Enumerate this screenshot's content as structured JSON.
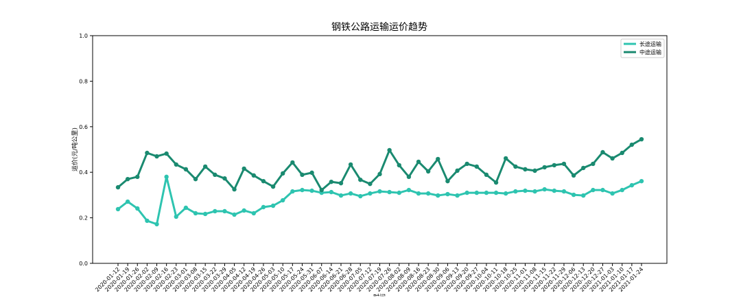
{
  "chart_data": {
    "type": "line",
    "title": "钢铁公路运输运价趋势",
    "xlabel": "时间",
    "ylabel": "运价(元/吨公里)",
    "categories": [
      "2020-01-12",
      "2020-01-19",
      "2020-01-26",
      "2020-02-02",
      "2020-02-09",
      "2020-02-16",
      "2020-02-23",
      "2020-03-01",
      "2020-03-08",
      "2020-03-15",
      "2020-03-22",
      "2020-03-29",
      "2020-04-05",
      "2020-04-12",
      "2020-04-19",
      "2020-04-26",
      "2020-05-03",
      "2020-05-10",
      "2020-05-17",
      "2020-05-24",
      "2020-05-31",
      "2020-06-07",
      "2020-06-14",
      "2020-06-21",
      "2020-06-28",
      "2020-07-05",
      "2020-07-12",
      "2020-07-19",
      "2020-07-26",
      "2020-08-02",
      "2020-08-09",
      "2020-08-16",
      "2020-08-23",
      "2020-08-30",
      "2020-09-06",
      "2020-09-13",
      "2020-09-20",
      "2020-09-27",
      "2020-10-04",
      "2020-10-11",
      "2020-10-18",
      "2020-10-25",
      "2020-11-01",
      "2020-11-08",
      "2020-11-15",
      "2020-11-22",
      "2020-11-29",
      "2020-12-06",
      "2020-12-13",
      "2020-12-20",
      "2020-12-27",
      "2021-01-03",
      "2021-01-10",
      "2021-01-17",
      "2021-01-24"
    ],
    "series": [
      {
        "name": "长途运输",
        "color": "#2ec4b0",
        "values": [
          0.238,
          0.271,
          0.241,
          0.187,
          0.172,
          0.38,
          0.205,
          0.244,
          0.22,
          0.217,
          0.229,
          0.229,
          0.214,
          0.232,
          0.22,
          0.247,
          0.253,
          0.277,
          0.316,
          0.322,
          0.319,
          0.31,
          0.313,
          0.298,
          0.307,
          0.295,
          0.307,
          0.316,
          0.313,
          0.31,
          0.322,
          0.307,
          0.307,
          0.298,
          0.304,
          0.298,
          0.31,
          0.31,
          0.31,
          0.31,
          0.307,
          0.316,
          0.319,
          0.316,
          0.325,
          0.319,
          0.316,
          0.301,
          0.298,
          0.322,
          0.322,
          0.307,
          0.322,
          0.343,
          0.361
        ]
      },
      {
        "name": "中途运输",
        "color": "#1a8a70",
        "values": [
          0.334,
          0.37,
          0.38,
          0.485,
          0.47,
          0.482,
          0.434,
          0.413,
          0.37,
          0.425,
          0.389,
          0.373,
          0.325,
          0.416,
          0.386,
          0.361,
          0.337,
          0.395,
          0.443,
          0.389,
          0.398,
          0.322,
          0.358,
          0.352,
          0.434,
          0.367,
          0.349,
          0.392,
          0.497,
          0.431,
          0.38,
          0.446,
          0.404,
          0.458,
          0.361,
          0.407,
          0.437,
          0.425,
          0.389,
          0.355,
          0.461,
          0.425,
          0.413,
          0.407,
          0.422,
          0.431,
          0.437,
          0.386,
          0.419,
          0.437,
          0.488,
          0.461,
          0.485,
          0.521,
          0.545
        ]
      }
    ],
    "ylim": [
      0,
      1
    ],
    "yticks": [
      {
        "value": 0,
        "label": "0.0"
      },
      0.2,
      0.4,
      0.6,
      0.8,
      {
        "value": 1,
        "label": "1.0"
      }
    ],
    "legend": "upper right"
  }
}
